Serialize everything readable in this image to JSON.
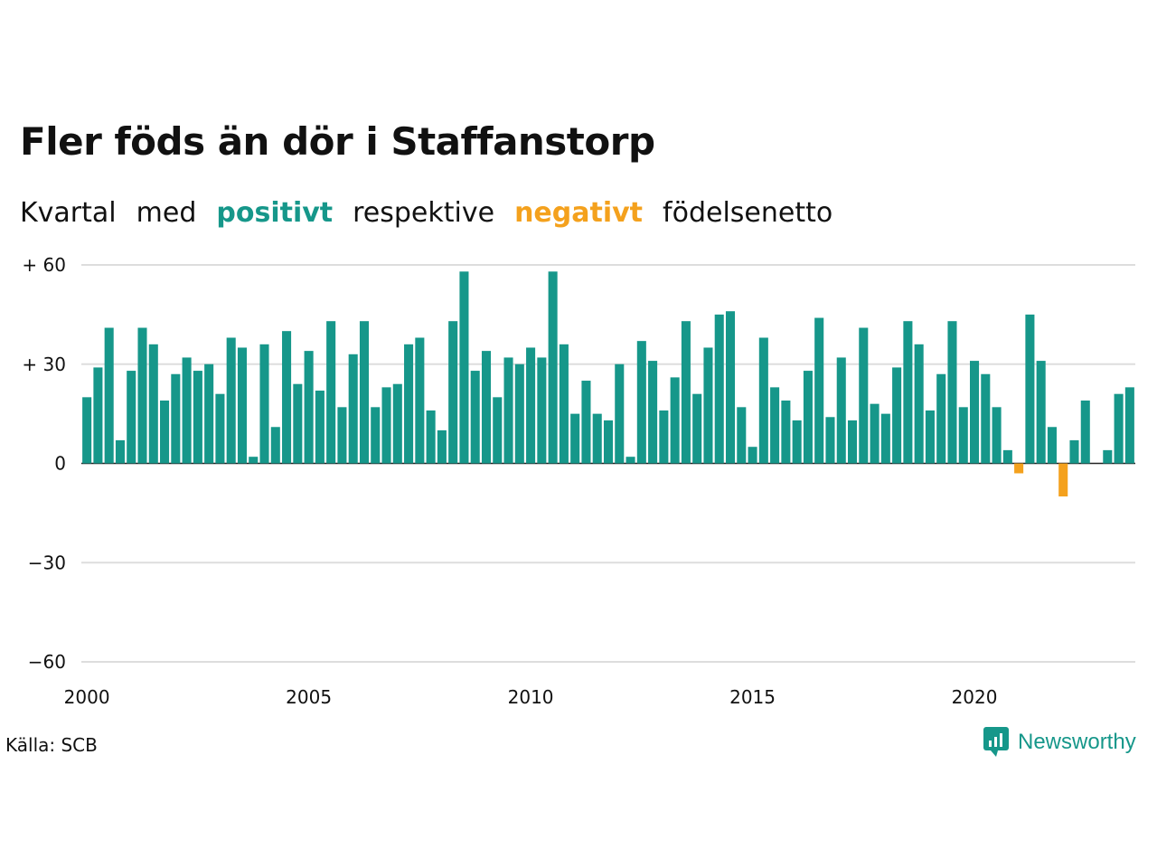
{
  "title": "Fler föds än dör i Staffanstorp",
  "subtitle": {
    "w1": "Kvartal",
    "w2": "med",
    "w3": "positivt",
    "w4": "respektive",
    "w5": "negativt",
    "w6": "födelsenetto"
  },
  "source": "Källa: SCB",
  "brand": "Newsworthy",
  "colors": {
    "positive": "#16978a",
    "negative": "#f4a11d",
    "grid": "#dddddd",
    "zero": "#222222"
  },
  "chart_data": {
    "type": "bar",
    "x_start": "2000 Q1",
    "x_ticks": [
      "2000",
      "2005",
      "2010",
      "2015",
      "2020"
    ],
    "y_ticks": [
      {
        "value": 60,
        "label": "+ 60"
      },
      {
        "value": 30,
        "label": "+ 30"
      },
      {
        "value": 0,
        "label": "0"
      },
      {
        "value": -30,
        "label": "−30"
      },
      {
        "value": -60,
        "label": "−60"
      }
    ],
    "ylim": [
      -60,
      60
    ],
    "grid": true,
    "values": [
      20,
      29,
      41,
      7,
      28,
      41,
      36,
      19,
      27,
      32,
      28,
      30,
      21,
      38,
      35,
      2,
      36,
      11,
      40,
      24,
      34,
      22,
      43,
      17,
      33,
      43,
      17,
      23,
      24,
      36,
      38,
      16,
      10,
      43,
      58,
      28,
      34,
      20,
      32,
      30,
      35,
      32,
      58,
      36,
      15,
      25,
      15,
      13,
      30,
      2,
      37,
      31,
      16,
      26,
      43,
      21,
      35,
      45,
      46,
      17,
      5,
      38,
      23,
      19,
      13,
      28,
      44,
      14,
      32,
      13,
      41,
      18,
      15,
      29,
      43,
      36,
      16,
      27,
      43,
      17,
      31,
      27,
      17,
      4,
      -3,
      45,
      31,
      11,
      -10,
      7,
      19,
      0,
      4,
      21,
      23
    ]
  }
}
